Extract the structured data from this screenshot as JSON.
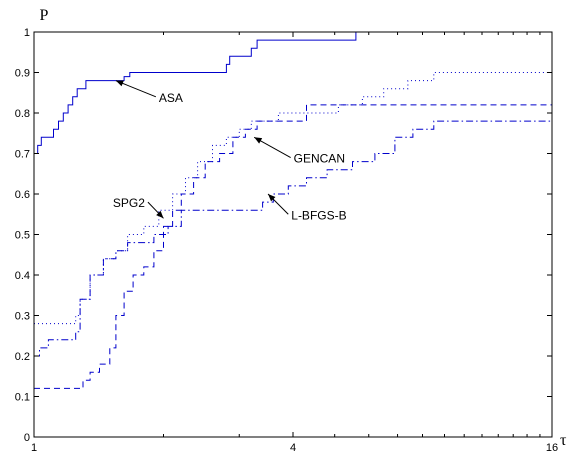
{
  "chart_data": {
    "type": "line",
    "title": "",
    "xlabel": "τ",
    "ylabel": "P",
    "x_scale": "log",
    "xlim": [
      1,
      16
    ],
    "ylim": [
      0,
      1
    ],
    "x_ticks": [
      1,
      4,
      16
    ],
    "x_tick_labels": [
      "1",
      "4",
      "16"
    ],
    "y_ticks": [
      0,
      0.1,
      0.2,
      0.3,
      0.4,
      0.5,
      0.6,
      0.7,
      0.8,
      0.9,
      1
    ],
    "y_tick_labels": [
      "0",
      "0.1",
      "0.2",
      "0.3",
      "0.4",
      "0.5",
      "0.6",
      "0.7",
      "0.8",
      "0.9",
      "1"
    ],
    "grid": false,
    "legend": "none",
    "series": [
      {
        "name": "ASA",
        "color": "#0000cc",
        "dash": "solid",
        "x": [
          1.0,
          1.02,
          1.04,
          1.11,
          1.14,
          1.17,
          1.2,
          1.23,
          1.26,
          1.29,
          1.32,
          1.35,
          1.38,
          1.42,
          1.52,
          1.62,
          1.67,
          2.7,
          2.8,
          2.85,
          3.2,
          3.3,
          5.6,
          16
        ],
        "y": [
          0.7,
          0.72,
          0.74,
          0.76,
          0.78,
          0.8,
          0.82,
          0.84,
          0.86,
          0.86,
          0.88,
          0.88,
          0.88,
          0.88,
          0.88,
          0.89,
          0.9,
          0.9,
          0.92,
          0.94,
          0.96,
          0.98,
          1.0,
          1.0
        ]
      },
      {
        "name": "SPG2",
        "color": "#0000cc",
        "dash": "dotted",
        "x": [
          1.0,
          1.02,
          1.25,
          1.28,
          1.35,
          1.45,
          1.55,
          1.65,
          1.8,
          1.95,
          2.1,
          2.25,
          2.4,
          2.6,
          2.8,
          3.0,
          3.2,
          3.4,
          3.7,
          4.0,
          4.6,
          5.1,
          5.8,
          6.5,
          7.4,
          8.5,
          10.0,
          16
        ],
        "y": [
          0.28,
          0.28,
          0.3,
          0.34,
          0.4,
          0.44,
          0.46,
          0.5,
          0.52,
          0.56,
          0.6,
          0.64,
          0.68,
          0.72,
          0.74,
          0.76,
          0.78,
          0.78,
          0.8,
          0.8,
          0.8,
          0.82,
          0.84,
          0.86,
          0.88,
          0.9,
          0.9,
          0.9
        ]
      },
      {
        "name": "GENCAN",
        "color": "#0000cc",
        "dash": "dashed",
        "x": [
          1.0,
          1.05,
          1.3,
          1.35,
          1.42,
          1.5,
          1.55,
          1.62,
          1.7,
          1.8,
          1.9,
          2.0,
          2.1,
          2.2,
          2.35,
          2.5,
          2.7,
          2.9,
          3.1,
          3.3,
          4.0,
          4.3,
          16
        ],
        "y": [
          0.12,
          0.12,
          0.14,
          0.16,
          0.18,
          0.22,
          0.3,
          0.36,
          0.4,
          0.42,
          0.46,
          0.52,
          0.56,
          0.6,
          0.64,
          0.68,
          0.7,
          0.74,
          0.76,
          0.78,
          0.78,
          0.82,
          0.82
        ]
      },
      {
        "name": "L-BFGS-B",
        "color": "#0000cc",
        "dash": "dashdot",
        "x": [
          1.0,
          1.03,
          1.08,
          1.25,
          1.28,
          1.35,
          1.45,
          1.55,
          1.65,
          1.75,
          1.9,
          2.05,
          2.2,
          3.4,
          3.6,
          3.9,
          4.3,
          4.8,
          5.5,
          6.2,
          6.9,
          7.6,
          8.5,
          16
        ],
        "y": [
          0.2,
          0.22,
          0.24,
          0.26,
          0.34,
          0.4,
          0.44,
          0.46,
          0.48,
          0.48,
          0.5,
          0.52,
          0.56,
          0.58,
          0.6,
          0.62,
          0.64,
          0.66,
          0.68,
          0.7,
          0.74,
          0.76,
          0.78,
          0.8
        ]
      }
    ],
    "annotations": [
      {
        "text": "ASA",
        "target": [
          1.55,
          0.88
        ],
        "from": [
          1.92,
          0.84
        ]
      },
      {
        "text": "GENCAN",
        "target": [
          3.25,
          0.74
        ],
        "from": [
          3.95,
          0.69
        ]
      },
      {
        "text": "SPG2",
        "target": [
          2.0,
          0.54
        ],
        "from": [
          1.84,
          0.58
        ]
      },
      {
        "text": "L-BFGS-B",
        "target": [
          3.5,
          0.6
        ],
        "from": [
          3.9,
          0.55
        ]
      }
    ]
  }
}
